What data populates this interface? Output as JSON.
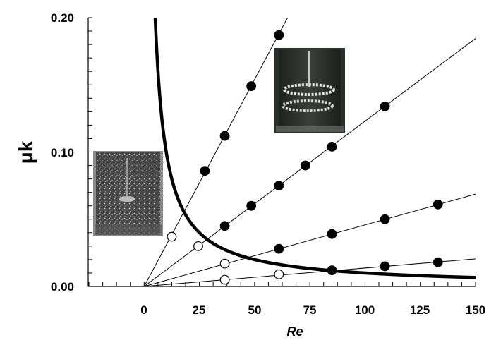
{
  "chart_data": {
    "type": "scatter",
    "title": "",
    "xlabel": "Re",
    "ylabel": "μk",
    "xlim": [
      -25,
      150
    ],
    "ylim": [
      0,
      0.2
    ],
    "xticks": [
      0,
      25,
      50,
      75,
      100,
      125,
      150
    ],
    "yticks": [
      0.0,
      0.1,
      0.2
    ],
    "xtick_labels": [
      "0",
      "25",
      "50",
      "75",
      "100",
      "125",
      "150"
    ],
    "ytick_labels": [
      "0.00",
      "0.10",
      "0.20"
    ],
    "grid": false,
    "series": [
      {
        "name": "line-1",
        "marker": "filled-circle",
        "slope": 0.00308,
        "line_x": [
          0,
          66.5
        ],
        "points": [
          [
            27.5,
            0.086
          ],
          [
            36.5,
            0.112
          ],
          [
            48.5,
            0.149
          ],
          [
            61,
            0.187
          ]
        ]
      },
      {
        "name": "line-2",
        "marker": "filled-circle",
        "slope": 0.00123,
        "line_x": [
          0,
          150
        ],
        "points": [
          [
            36.5,
            0.045
          ],
          [
            48.5,
            0.06
          ],
          [
            61,
            0.075
          ],
          [
            73,
            0.09
          ],
          [
            85,
            0.104
          ],
          [
            109,
            0.134
          ]
        ]
      },
      {
        "name": "line-3",
        "marker": "filled-circle",
        "slope": 0.000458,
        "line_x": [
          0,
          150
        ],
        "points": [
          [
            61,
            0.028
          ],
          [
            85,
            0.039
          ],
          [
            109,
            0.05
          ],
          [
            133,
            0.061
          ]
        ]
      },
      {
        "name": "line-4",
        "marker": "filled-circle",
        "slope": 0.000137,
        "line_x": [
          0,
          150
        ],
        "points": [
          [
            85,
            0.012
          ],
          [
            109,
            0.015
          ],
          [
            133,
            0.018
          ]
        ]
      },
      {
        "name": "open-points",
        "marker": "open-circle",
        "points": [
          [
            12.5,
            0.037
          ],
          [
            24.5,
            0.03
          ],
          [
            36.5,
            0.017
          ],
          [
            36.5,
            0.005
          ],
          [
            61,
            0.009
          ]
        ]
      },
      {
        "name": "critical-curve",
        "type": "curve",
        "formula": "y = 1 / x",
        "x_range": [
          5,
          150
        ],
        "style": "thick"
      }
    ],
    "inset_images": [
      "photo of vessel with dispersed particles",
      "photo of vessel with ring-shaped particle structure"
    ]
  }
}
